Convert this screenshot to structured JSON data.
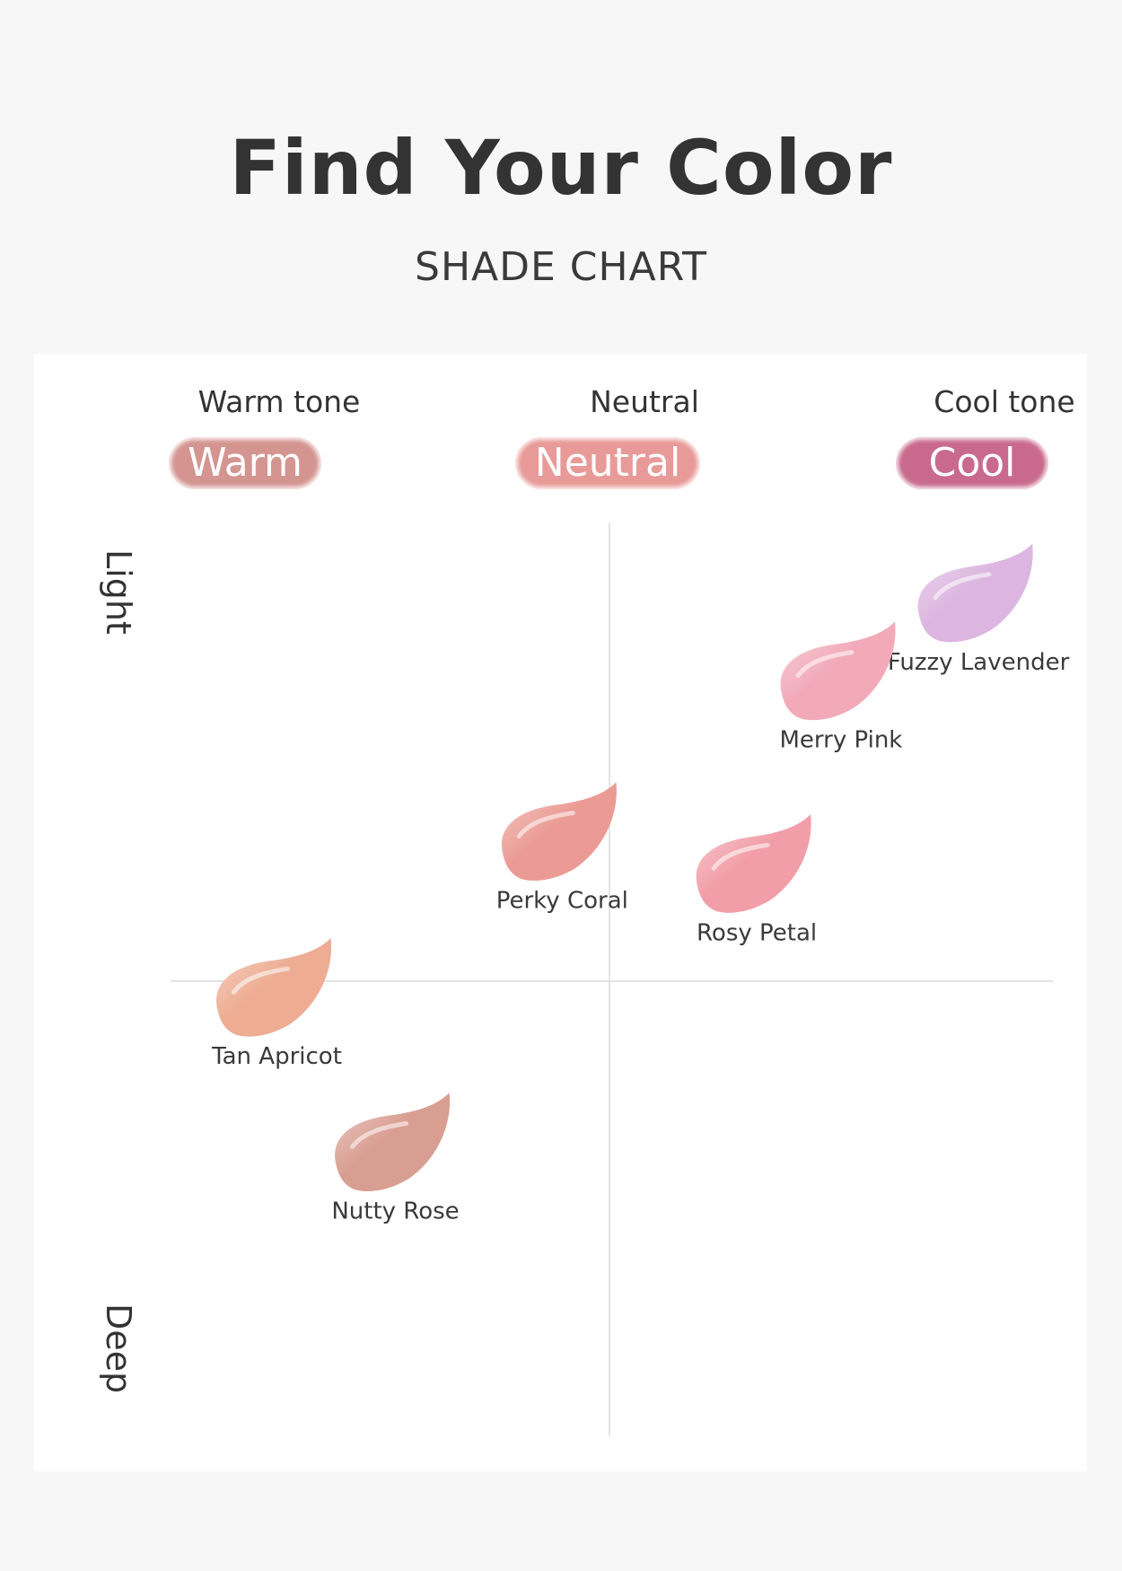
{
  "title": "Find Your Color",
  "subtitle": "SHADE CHART",
  "chart_data": {
    "type": "scatter",
    "x_axis": {
      "categories": [
        "Warm tone",
        "Neutral",
        "Cool tone"
      ],
      "badges": [
        "Warm",
        "Neutral",
        "Cool"
      ],
      "badge_colors": [
        "#d49590",
        "#e89a98",
        "#c96a8c"
      ],
      "range": [
        -1,
        1
      ]
    },
    "y_axis": {
      "top_label": "Light",
      "bottom_label": "Deep",
      "range": [
        -1,
        1
      ]
    },
    "points": [
      {
        "name": "Fuzzy Lavender",
        "x": 0.82,
        "y": 0.84,
        "color": "#dcb6e0"
      },
      {
        "name": "Merry Pink",
        "x": 0.51,
        "y": 0.67,
        "color": "#f2aab9"
      },
      {
        "name": "Perky Coral",
        "x": -0.12,
        "y": 0.32,
        "color": "#eb9b94"
      },
      {
        "name": "Rosy Petal",
        "x": 0.32,
        "y": 0.25,
        "color": "#f29ea8"
      },
      {
        "name": "Tan Apricot",
        "x": -0.77,
        "y": -0.02,
        "color": "#eeac93"
      },
      {
        "name": "Nutty Rose",
        "x": -0.5,
        "y": -0.36,
        "color": "#d99e92"
      }
    ]
  }
}
